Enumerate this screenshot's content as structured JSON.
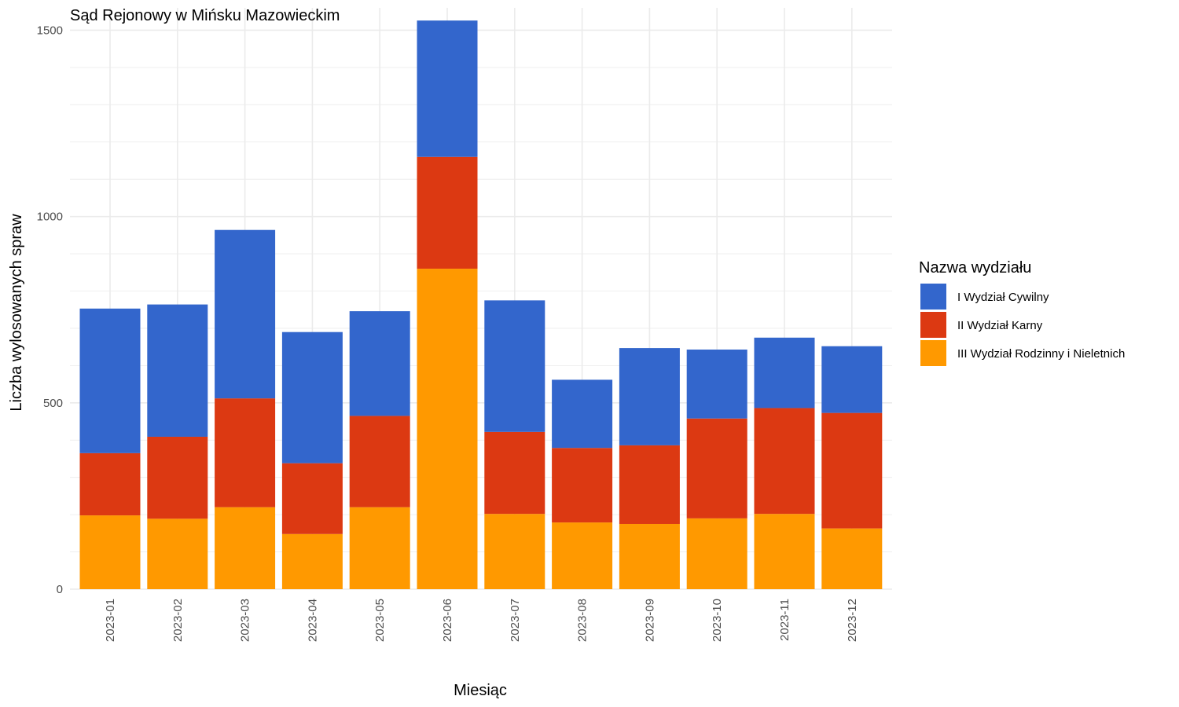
{
  "chart_data": {
    "type": "bar",
    "stacked": true,
    "title": "Sąd Rejonowy w Mińsku Mazowieckim",
    "xlabel": "Miesiąc",
    "ylabel": "Liczba wylosowanych spraw",
    "ylim": [
      0,
      1560
    ],
    "y_ticks": [
      0,
      500,
      1000,
      1500
    ],
    "grid": true,
    "legend_title": "Nazwa wydziału",
    "legend_position": "right",
    "categories": [
      "2023-01",
      "2023-02",
      "2023-03",
      "2023-04",
      "2023-05",
      "2023-06",
      "2023-07",
      "2023-08",
      "2023-09",
      "2023-10",
      "2023-11",
      "2023-12"
    ],
    "series": [
      {
        "name": "III Wydział Rodzinny i Nieletnich",
        "color": "#FF9900",
        "values": [
          198,
          189,
          220,
          148,
          220,
          860,
          202,
          179,
          175,
          190,
          202,
          163
        ]
      },
      {
        "name": "II Wydział Karny",
        "color": "#DC3912",
        "values": [
          167,
          220,
          292,
          190,
          245,
          300,
          220,
          200,
          211,
          268,
          284,
          310
        ]
      },
      {
        "name": "I Wydział Cywilny",
        "color": "#3366CC",
        "values": [
          388,
          355,
          452,
          352,
          281,
          366,
          353,
          183,
          261,
          185,
          189,
          179
        ]
      }
    ],
    "legend_order": [
      "I Wydział Cywilny",
      "II Wydział Karny",
      "III Wydział Rodzinny i Nieletnich"
    ]
  }
}
